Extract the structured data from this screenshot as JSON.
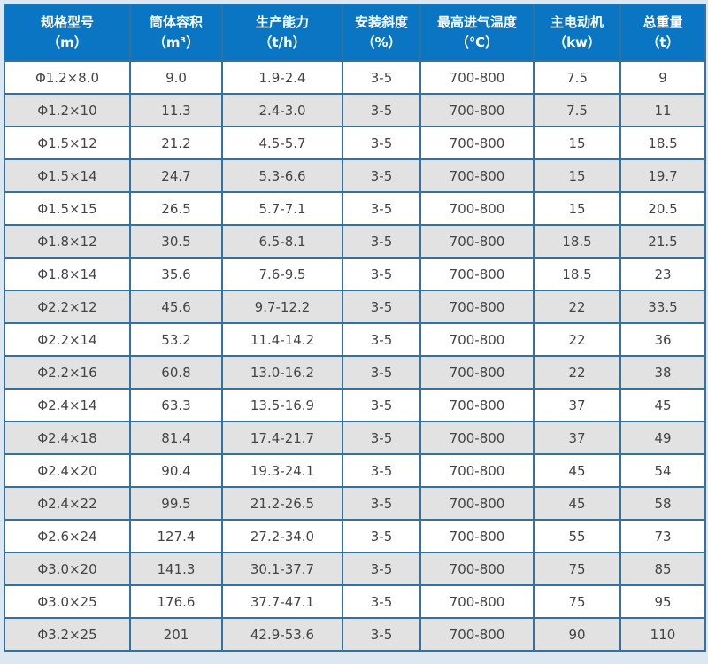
{
  "colors": {
    "page_bg": "#dde7f2",
    "header_bg": "#0a75c2",
    "header_text": "#ffffff",
    "border": "#33719f",
    "row_bg": "#ffffff",
    "row_alt_bg": "#e2e2e2",
    "cell_text": "#444444"
  },
  "chart_data": {
    "type": "table",
    "columns": [
      {
        "label": "规格型号",
        "unit": "（m）"
      },
      {
        "label": "筒体容积",
        "unit": "（m³）"
      },
      {
        "label": "生产能力",
        "unit": "（t/h）"
      },
      {
        "label": "安装斜度",
        "unit": "（%）"
      },
      {
        "label": "最高进气温度",
        "unit": "（℃）"
      },
      {
        "label": "主电动机",
        "unit": "（kw）"
      },
      {
        "label": "总重量",
        "unit": "（t）"
      }
    ],
    "rows": [
      [
        "Φ1.2×8.0",
        "9.0",
        "1.9-2.4",
        "3-5",
        "700-800",
        "7.5",
        "9"
      ],
      [
        "Φ1.2×10",
        "11.3",
        "2.4-3.0",
        "3-5",
        "700-800",
        "7.5",
        "11"
      ],
      [
        "Φ1.5×12",
        "21.2",
        "4.5-5.7",
        "3-5",
        "700-800",
        "15",
        "18.5"
      ],
      [
        "Φ1.5×14",
        "24.7",
        "5.3-6.6",
        "3-5",
        "700-800",
        "15",
        "19.7"
      ],
      [
        "Φ1.5×15",
        "26.5",
        "5.7-7.1",
        "3-5",
        "700-800",
        "15",
        "20.5"
      ],
      [
        "Φ1.8×12",
        "30.5",
        "6.5-8.1",
        "3-5",
        "700-800",
        "18.5",
        "21.5"
      ],
      [
        "Φ1.8×14",
        "35.6",
        "7.6-9.5",
        "3-5",
        "700-800",
        "18.5",
        "23"
      ],
      [
        "Φ2.2×12",
        "45.6",
        "9.7-12.2",
        "3-5",
        "700-800",
        "22",
        "33.5"
      ],
      [
        "Φ2.2×14",
        "53.2",
        "11.4-14.2",
        "3-5",
        "700-800",
        "22",
        "36"
      ],
      [
        "Φ2.2×16",
        "60.8",
        "13.0-16.2",
        "3-5",
        "700-800",
        "22",
        "38"
      ],
      [
        "Φ2.4×14",
        "63.3",
        "13.5-16.9",
        "3-5",
        "700-800",
        "37",
        "45"
      ],
      [
        "Φ2.4×18",
        "81.4",
        "17.4-21.7",
        "3-5",
        "700-800",
        "37",
        "49"
      ],
      [
        "Φ2.4×20",
        "90.4",
        "19.3-24.1",
        "3-5",
        "700-800",
        "45",
        "54"
      ],
      [
        "Φ2.4×22",
        "99.5",
        "21.2-26.5",
        "3-5",
        "700-800",
        "45",
        "58"
      ],
      [
        "Φ2.6×24",
        "127.4",
        "27.2-34.0",
        "3-5",
        "700-800",
        "55",
        "73"
      ],
      [
        "Φ3.0×20",
        "141.3",
        "30.1-37.7",
        "3-5",
        "700-800",
        "75",
        "85"
      ],
      [
        "Φ3.0×25",
        "176.6",
        "37.7-47.1",
        "3-5",
        "700-800",
        "75",
        "95"
      ],
      [
        "Φ3.2×25",
        "201",
        "42.9-53.6",
        "3-5",
        "700-800",
        "90",
        "110"
      ]
    ]
  }
}
